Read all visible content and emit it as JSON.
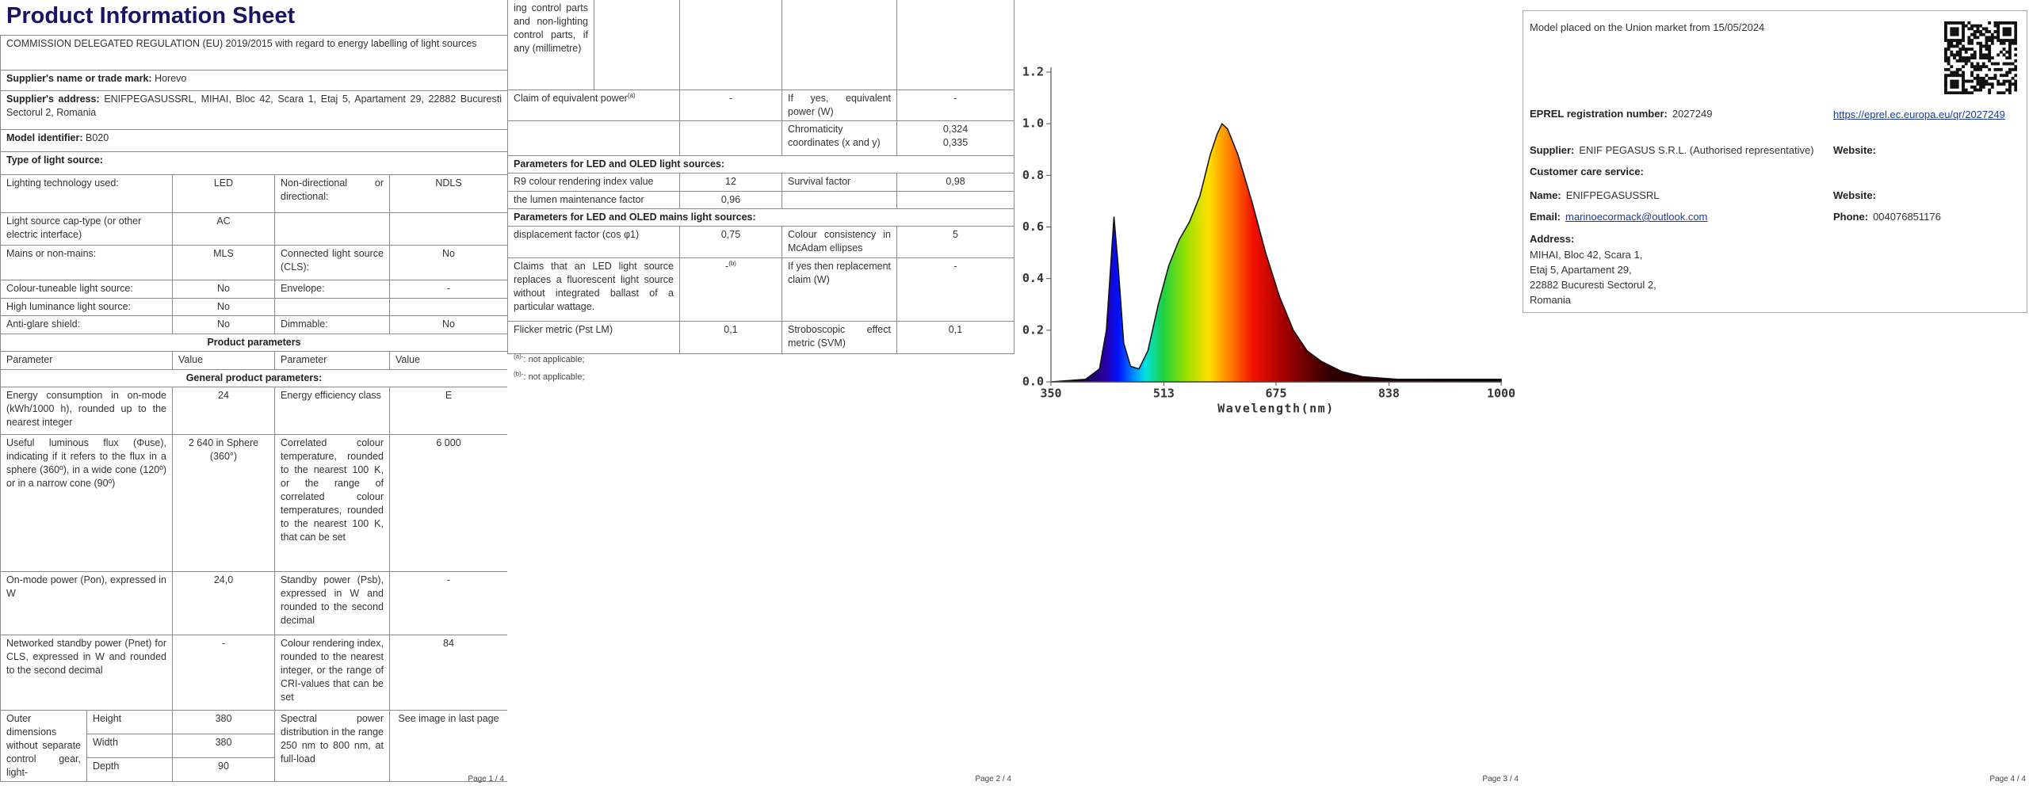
{
  "page1": {
    "title": "Product Information Sheet",
    "regulation": "COMMISSION DELEGATED REGULATION (EU) 2019/2015 with regard to energy labelling of light sources",
    "supplier_name_label": "Supplier's name or trade mark:",
    "supplier_name": "Horevo",
    "supplier_address_label": "Supplier's address:",
    "supplier_address": "ENIFPEGASUSSRL, MIHAI, Bloc 42, Scara 1, Etaj 5, Apartament 29, 22882 Bucuresti Sectorul 2, Romania",
    "model_label": "Model identifier:",
    "model": "B020",
    "type_heading": "Type of light source:",
    "type_rows": [
      [
        "Lighting technology used:",
        "LED",
        "Non-directional or directional:",
        "NDLS"
      ],
      [
        "Light source cap-type (or other electric interface)",
        "AC"
      ],
      [
        "Mains or non-mains:",
        "MLS",
        "Connected light source (CLS):",
        "No"
      ],
      [
        "Colour-tuneable light source:",
        "No",
        "Envelope:",
        "-"
      ],
      [
        "High luminance light source:",
        "No"
      ],
      [
        "Anti-glare shield:",
        "No",
        "Dimmable:",
        "No"
      ]
    ],
    "product_parameters": "Product parameters",
    "header": [
      "Parameter",
      "Value",
      "Parameter",
      "Value"
    ],
    "general_heading": "General product parameters:",
    "params": [
      [
        "Energy consumption in on-mode (kWh/1000 h), rounded up to the nearest integer",
        "24",
        "Energy efficiency class",
        "E"
      ],
      [
        "Useful luminous flux (Φuse), indicating if it refers to the flux in a sphere (360º), in a wide cone (120º) or in a narrow cone (90º)",
        "2 640 in Sphere (360°)",
        "Correlated colour temperature, rounded to the nearest 100 K, or the range of correlated colour temperatures, rounded to the nearest 100 K, that can be set",
        "6 000"
      ],
      [
        "On-mode power (Pon), expressed in W",
        "24,0",
        "Standby power (Psb), expressed in W and rounded to the second decimal",
        "-"
      ],
      [
        "Networked standby power (Pnet) for CLS, expressed in W and rounded to the second decimal",
        "-",
        "Colour rendering index, rounded to the nearest integer, or the range of CRI-values that can be set",
        "84"
      ]
    ],
    "dimensions": {
      "label": "Outer dimensions without separate control gear, light-",
      "height_label": "Height",
      "height": 380,
      "width_label": "Width",
      "width": 380,
      "depth_label": "Depth",
      "depth": 90,
      "spd_label": "Spectral power distribution in the range 250 nm to 800 nm, at full-load",
      "spd_value": "See image in last page"
    },
    "footer": "Page 1 / 4"
  },
  "page2": {
    "dimensions_cont": "ing control parts and non-lighting control parts, if any (millimetre)",
    "equivalent": {
      "label": "Claim of equivalent power",
      "note": "(a)",
      "value": "-",
      "yes_label": "If yes, equivalent power (W)",
      "yes_value": "-"
    },
    "chromaticity": {
      "label": "Chromaticity coordinates (x and y)",
      "x": "0,324",
      "y": "0,335"
    },
    "led_heading": "Parameters for LED and OLED light sources:",
    "r9": [
      "R9 colour rendering index value",
      "12",
      "Survival factor",
      "0,98"
    ],
    "lumen": [
      "the lumen maintenance factor",
      "0,96"
    ],
    "mains_heading": "Parameters for LED and OLED mains light sources:",
    "displacement": [
      "displacement factor (cos φ1)",
      "0,75",
      "Colour consistency in McAdam ellipses",
      "5"
    ],
    "claims": {
      "label": "Claims that an LED light source replaces a fluorescent light source without integrated ballast of a particular wattage.",
      "value": "-",
      "note": "(b)",
      "yes_label": "If yes then replacement claim (W)",
      "yes_value": "-"
    },
    "flicker": [
      "Flicker metric (Pst LM)",
      "0,1",
      "Stroboscopic effect metric (SVM)",
      "0,1"
    ],
    "notes": [
      {
        "mark": "(a)-",
        "text": ": not applicable;"
      },
      {
        "mark": "(b)-",
        "text": ": not applicable;"
      }
    ],
    "footer": "Page 2 / 4"
  },
  "page3": {
    "spectrum": {
      "type": "area",
      "xlabel": "Wavelength(nm)",
      "x": [
        350,
        400,
        420,
        430,
        435,
        441,
        447,
        455,
        465,
        477,
        490,
        505,
        520,
        535,
        550,
        565,
        580,
        590,
        597,
        605,
        620,
        640,
        660,
        680,
        700,
        720,
        740,
        770,
        800,
        850,
        900,
        1000
      ],
      "values": [
        0.0,
        0.01,
        0.05,
        0.2,
        0.4,
        0.64,
        0.45,
        0.15,
        0.06,
        0.05,
        0.12,
        0.3,
        0.45,
        0.55,
        0.62,
        0.72,
        0.88,
        0.96,
        1.0,
        0.98,
        0.88,
        0.7,
        0.5,
        0.33,
        0.2,
        0.12,
        0.08,
        0.04,
        0.02,
        0.01,
        0.01,
        0.01
      ],
      "xlim": [
        350,
        1000
      ],
      "ylim": [
        0,
        1.2
      ],
      "xticks": [
        350,
        513,
        675,
        838,
        1000
      ],
      "yticks": [
        {
          "value": 0,
          "label": "0.0"
        },
        0.2,
        0.4,
        0.6,
        0.8,
        {
          "value": 1,
          "label": "1.0"
        },
        1.2
      ]
    },
    "footer": "Page 3 / 4"
  },
  "page4": {
    "market": "Model placed on the Union market from 15/05/2024",
    "eprel_label": "EPREL registration number:",
    "eprel": "2027249",
    "link": "https://eprel.ec.europa.eu/qr/2027249",
    "supplier_label": "Supplier:",
    "supplier": "ENIF PEGASUS S.R.L. (Authorised representative)",
    "website_label": "Website:",
    "care_heading": "Customer care service:",
    "name_label": "Name:",
    "name": "ENIFPEGASUSSRL",
    "website2_label": "Website:",
    "email_label": "Email:",
    "email": "marinoecormack@outlook.com",
    "phone_label": "Phone:",
    "phone": "004076851176",
    "address_label": "Address:",
    "address": [
      "MIHAI, Bloc 42, Scara 1,",
      "Etaj 5, Apartament 29,",
      "22882 Bucuresti Sectorul 2,",
      "Romania"
    ],
    "footer": "Page 4 / 4"
  }
}
